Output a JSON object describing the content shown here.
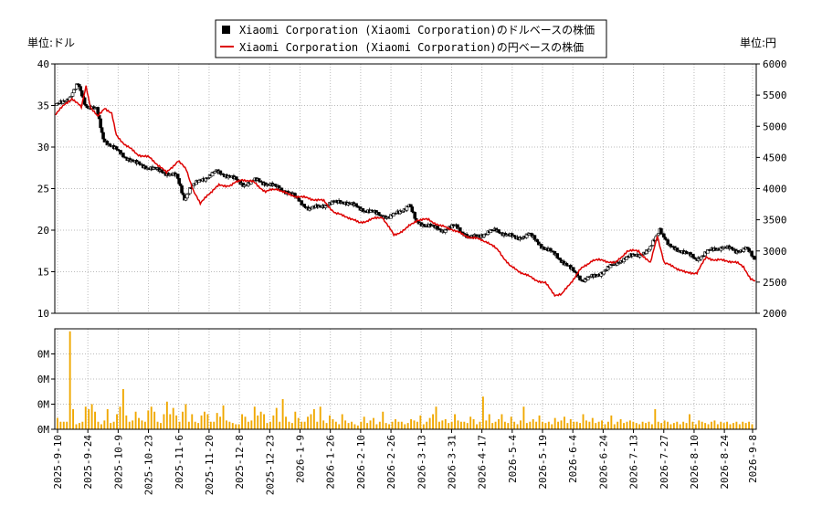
{
  "chart_data": {
    "type": "line",
    "title": "",
    "legend": {
      "placement": "top-center",
      "entries": [
        {
          "label": "Xiaomi Corporation (Xiaomi Corporation)のドルベースの株価",
          "color": "#000000",
          "marker": "candlestick"
        },
        {
          "label": "Xiaomi Corporation (Xiaomi Corporation)の円ベースの株価",
          "color": "#dd0000",
          "marker": "line"
        }
      ]
    },
    "left_axis": {
      "unit_label": "単位:ドル",
      "min": 10,
      "max": 40,
      "ticks": [
        "10",
        "15",
        "20",
        "25",
        "30",
        "35",
        "40"
      ]
    },
    "right_axis": {
      "unit_label": "単位:円",
      "min": 2000,
      "max": 6000,
      "ticks": [
        "2000",
        "2500",
        "3000",
        "3500",
        "4000",
        "4500",
        "5000",
        "5500",
        "6000"
      ]
    },
    "volume_axis": {
      "min": 0,
      "max": 4,
      "ticks": [
        "0M",
        "0M",
        "0M",
        "0M"
      ]
    },
    "x_tick_labels": [
      "2025-9-10",
      "2025-9-24",
      "2025-10-9",
      "2025-10-23",
      "2025-11-6",
      "2025-11-20",
      "2025-12-8",
      "2025-12-23",
      "2026-1-9",
      "2026-1-26",
      "2026-2-10",
      "2026-2-26",
      "2026-3-13",
      "2026-3-31",
      "2026-4-17",
      "2026-5-4",
      "2026-5-19",
      "2026-6-4",
      "2026-6-24",
      "2026-7-13",
      "2026-7-27",
      "2026-8-10",
      "2026-8-24",
      "2026-9-8"
    ],
    "grid": true,
    "usd_series_anchors": [
      [
        0,
        35.0
      ],
      [
        10,
        36.0
      ],
      [
        16,
        37.5
      ],
      [
        22,
        35.0
      ],
      [
        30,
        34.5
      ],
      [
        35,
        31.0
      ],
      [
        42,
        30.0
      ],
      [
        50,
        29.0
      ],
      [
        60,
        28.0
      ],
      [
        70,
        27.5
      ],
      [
        80,
        27.0
      ],
      [
        90,
        26.5
      ],
      [
        96,
        23.8
      ],
      [
        100,
        25.0
      ],
      [
        108,
        26.0
      ],
      [
        120,
        27.0
      ],
      [
        130,
        26.5
      ],
      [
        140,
        25.5
      ],
      [
        150,
        26.0
      ],
      [
        160,
        25.5
      ],
      [
        175,
        24.5
      ],
      [
        190,
        22.5
      ],
      [
        200,
        23.0
      ],
      [
        215,
        23.5
      ],
      [
        230,
        22.5
      ],
      [
        240,
        22.0
      ],
      [
        250,
        21.5
      ],
      [
        260,
        22.5
      ],
      [
        265,
        23.0
      ],
      [
        270,
        21.0
      ],
      [
        280,
        20.5
      ],
      [
        290,
        20.0
      ],
      [
        300,
        20.5
      ],
      [
        310,
        19.0
      ],
      [
        320,
        19.5
      ],
      [
        330,
        20.0
      ],
      [
        345,
        19.0
      ],
      [
        355,
        19.5
      ],
      [
        365,
        18.0
      ],
      [
        375,
        17.0
      ],
      [
        385,
        15.5
      ],
      [
        395,
        14.0
      ],
      [
        405,
        14.5
      ],
      [
        415,
        15.5
      ],
      [
        425,
        16.5
      ],
      [
        435,
        17.0
      ],
      [
        445,
        17.5
      ],
      [
        453,
        20.2
      ],
      [
        460,
        18.0
      ],
      [
        470,
        17.5
      ],
      [
        480,
        16.5
      ],
      [
        490,
        17.5
      ],
      [
        500,
        18.0
      ],
      [
        510,
        17.5
      ],
      [
        518,
        17.8
      ],
      [
        524,
        16.5
      ]
    ],
    "jpy_series_anchors": [
      [
        0,
        5200
      ],
      [
        8,
        5350
      ],
      [
        14,
        5450
      ],
      [
        22,
        5300
      ],
      [
        26,
        5650
      ],
      [
        30,
        5300
      ],
      [
        36,
        5150
      ],
      [
        42,
        5300
      ],
      [
        48,
        5200
      ],
      [
        52,
        4850
      ],
      [
        60,
        4700
      ],
      [
        70,
        4550
      ],
      [
        80,
        4500
      ],
      [
        90,
        4350
      ],
      [
        95,
        4250
      ],
      [
        105,
        4450
      ],
      [
        112,
        4300
      ],
      [
        118,
        3980
      ],
      [
        124,
        3750
      ],
      [
        130,
        3900
      ],
      [
        140,
        4050
      ],
      [
        150,
        4050
      ],
      [
        160,
        4150
      ],
      [
        170,
        4100
      ],
      [
        180,
        3950
      ],
      [
        190,
        4000
      ],
      [
        200,
        3900
      ],
      [
        215,
        3850
      ],
      [
        230,
        3800
      ],
      [
        240,
        3600
      ],
      [
        250,
        3550
      ],
      [
        260,
        3450
      ],
      [
        270,
        3500
      ],
      [
        280,
        3550
      ],
      [
        290,
        3250
      ],
      [
        300,
        3350
      ],
      [
        310,
        3500
      ],
      [
        320,
        3500
      ],
      [
        330,
        3400
      ],
      [
        340,
        3350
      ],
      [
        350,
        3250
      ],
      [
        360,
        3200
      ],
      [
        370,
        3150
      ],
      [
        380,
        3000
      ],
      [
        390,
        2750
      ],
      [
        400,
        2650
      ],
      [
        410,
        2550
      ],
      [
        420,
        2480
      ],
      [
        428,
        2300
      ],
      [
        434,
        2300
      ],
      [
        440,
        2450
      ],
      [
        450,
        2700
      ],
      [
        460,
        2850
      ],
      [
        470,
        2850
      ],
      [
        480,
        2800
      ],
      [
        490,
        3000
      ],
      [
        500,
        3000
      ],
      [
        510,
        2800
      ],
      [
        516,
        3250
      ],
      [
        522,
        2800
      ],
      [
        530,
        2750
      ],
      [
        540,
        2650
      ],
      [
        550,
        2650
      ],
      [
        558,
        2900
      ],
      [
        566,
        2850
      ],
      [
        575,
        2850
      ],
      [
        585,
        2800
      ],
      [
        590,
        2750
      ],
      [
        596,
        2550
      ],
      [
        600,
        2500
      ]
    ],
    "volume_pattern": [
      0.45,
      0.3,
      0.3,
      0.3,
      3.9,
      0.8,
      0.2,
      0.25,
      0.3,
      0.9,
      0.8,
      1.0,
      0.7,
      0.3,
      0.2,
      0.35,
      0.8,
      0.25,
      0.3,
      0.6,
      0.9,
      1.6,
      0.55,
      0.3,
      0.35,
      0.7,
      0.45,
      0.35,
      0.3,
      0.75,
      0.9,
      0.7,
      0.3,
      0.25,
      0.6,
      1.1,
      0.6,
      0.85,
      0.55,
      0.3,
      0.7,
      1.0,
      0.3,
      0.6,
      0.3,
      0.25,
      0.55,
      0.7,
      0.6,
      0.3,
      0.3,
      0.65,
      0.5,
      0.95,
      0.35,
      0.3,
      0.25,
      0.2,
      0.2,
      0.6,
      0.5,
      0.3,
      0.35,
      0.9,
      0.55,
      0.7,
      0.6,
      0.25,
      0.3,
      0.55,
      0.85,
      0.3,
      1.2,
      0.5,
      0.3,
      0.25,
      0.7,
      0.45,
      0.3,
      0.3,
      0.5,
      0.6,
      0.8,
      0.3,
      0.9,
      0.35,
      0.25,
      0.55,
      0.4,
      0.3,
      0.2,
      0.6,
      0.35,
      0.25,
      0.3,
      0.2,
      0.15,
      0.3,
      0.5,
      0.25,
      0.35,
      0.45,
      0.2,
      0.3,
      0.7,
      0.25,
      0.2,
      0.3,
      0.4,
      0.3,
      0.3,
      0.2,
      0.25,
      0.4,
      0.35,
      0.3,
      0.55,
      0.2,
      0.3,
      0.45,
      0.6,
      0.9,
      0.3,
      0.35,
      0.4,
      0.25,
      0.3,
      0.6,
      0.35,
      0.3,
      0.3,
      0.25,
      0.5,
      0.4,
      0.2,
      0.3,
      1.3,
      0.35,
      0.6,
      0.25,
      0.3,
      0.4,
      0.6,
      0.3,
      0.25,
      0.5,
      0.3,
      0.2,
      0.35,
      0.9,
      0.25,
      0.3,
      0.4,
      0.3,
      0.55,
      0.3,
      0.25,
      0.3,
      0.2,
      0.45,
      0.3,
      0.35,
      0.5,
      0.25,
      0.4,
      0.3,
      0.3,
      0.25,
      0.6,
      0.35,
      0.3,
      0.45,
      0.25,
      0.3,
      0.35,
      0.2,
      0.3,
      0.55,
      0.2,
      0.3,
      0.4,
      0.25,
      0.3,
      0.35,
      0.3,
      0.25,
      0.2,
      0.3,
      0.25,
      0.3,
      0.2,
      0.8,
      0.3,
      0.25,
      0.35,
      0.3,
      0.2,
      0.25,
      0.3,
      0.2,
      0.3,
      0.25,
      0.6,
      0.3,
      0.2,
      0.35,
      0.3,
      0.25,
      0.2,
      0.3,
      0.35,
      0.2,
      0.3,
      0.25,
      0.3,
      0.2,
      0.25,
      0.3,
      0.2,
      0.3,
      0.25,
      0.3,
      0.2
    ]
  }
}
